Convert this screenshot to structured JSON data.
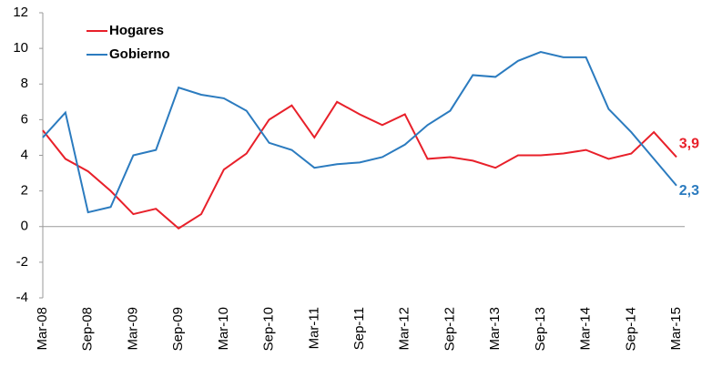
{
  "chart_data": {
    "type": "line",
    "categories": [
      "Mar-08",
      null,
      "Sep-08",
      null,
      "Mar-09",
      null,
      "Sep-09",
      null,
      "Mar-10",
      null,
      "Sep-10",
      null,
      "Mar-11",
      null,
      "Sep-11",
      null,
      "Mar-12",
      null,
      "Sep-12",
      null,
      "Mar-13",
      null,
      "Sep-13",
      null,
      "Mar-14",
      null,
      "Sep-14",
      null,
      "Mar-15"
    ],
    "series": [
      {
        "name": "Hogares",
        "color": "#e8202a",
        "values": [
          5.4,
          3.8,
          3.1,
          2.0,
          0.7,
          1.0,
          -0.1,
          0.7,
          3.2,
          4.1,
          6.0,
          6.8,
          5.0,
          7.0,
          6.3,
          5.7,
          6.3,
          3.8,
          3.9,
          3.7,
          3.3,
          4.0,
          4.0,
          4.1,
          4.3,
          3.8,
          4.1,
          5.3,
          3.9
        ],
        "value_labels": [
          null,
          null,
          null,
          null,
          null,
          null,
          null,
          null,
          null,
          null,
          null,
          null,
          null,
          null,
          null,
          null,
          null,
          null,
          null,
          null,
          null,
          null,
          null,
          null,
          null,
          null,
          null,
          null,
          "3,9"
        ]
      },
      {
        "name": "Gobierno",
        "color": "#2b7bbf",
        "values": [
          5.0,
          6.4,
          0.8,
          1.1,
          4.0,
          4.3,
          7.8,
          7.4,
          7.2,
          6.5,
          4.7,
          4.3,
          3.3,
          3.5,
          3.6,
          3.9,
          4.6,
          5.7,
          6.5,
          8.5,
          8.4,
          9.3,
          9.8,
          9.5,
          9.5,
          6.6,
          5.3,
          3.8,
          2.3
        ],
        "value_labels": [
          null,
          null,
          null,
          null,
          null,
          null,
          null,
          null,
          null,
          null,
          null,
          null,
          null,
          null,
          null,
          null,
          null,
          null,
          null,
          null,
          null,
          null,
          null,
          null,
          null,
          null,
          null,
          null,
          "2,3"
        ]
      }
    ],
    "ylim": [
      -4,
      12
    ],
    "yticks": [
      -4,
      -2,
      0,
      2,
      4,
      6,
      8,
      10,
      12
    ],
    "grid": false,
    "legend": "top-left"
  }
}
